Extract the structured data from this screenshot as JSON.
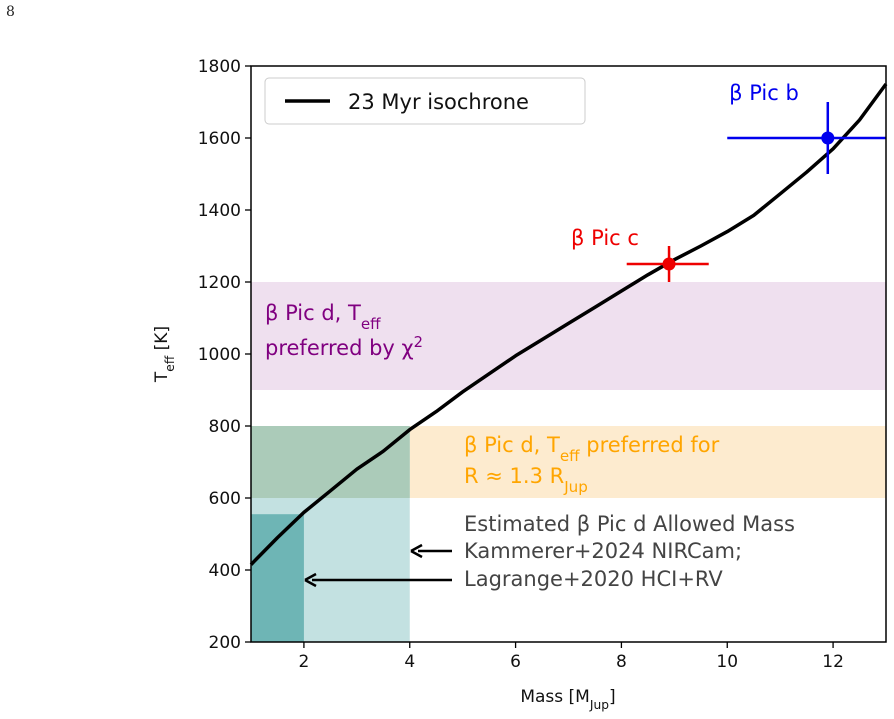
{
  "page_number": "8",
  "chart_data": {
    "type": "line",
    "xlabel": "Mass [M_Jup]",
    "ylabel": "T_eff [K]",
    "xlim": [
      1,
      13
    ],
    "ylim": [
      200,
      1800
    ],
    "xticks": [
      2,
      4,
      6,
      8,
      10,
      12
    ],
    "yticks": [
      200,
      400,
      600,
      800,
      1000,
      1200,
      1400,
      1600,
      1800
    ],
    "grid": false,
    "legend": {
      "position": "top-left",
      "entries": [
        "23 Myr isochrone"
      ]
    },
    "series": [
      {
        "name": "23 Myr isochrone",
        "color": "#000000",
        "x": [
          1.0,
          1.5,
          2.0,
          2.5,
          3.0,
          3.5,
          4.0,
          4.5,
          5.0,
          5.5,
          6.0,
          6.5,
          7.0,
          7.5,
          8.0,
          8.5,
          9.0,
          9.5,
          10.0,
          10.5,
          11.0,
          11.5,
          12.0,
          12.5,
          13.0
        ],
        "y": [
          415,
          490,
          560,
          620,
          680,
          730,
          790,
          840,
          895,
          945,
          995,
          1040,
          1085,
          1130,
          1175,
          1220,
          1262,
          1300,
          1340,
          1385,
          1445,
          1505,
          1570,
          1650,
          1750
        ]
      }
    ],
    "points": [
      {
        "label": "β Pic b",
        "color": "#0000ee",
        "x": 11.9,
        "y": 1600,
        "xerr": [
          1.9,
          1.1
        ],
        "yerr": [
          100,
          100
        ]
      },
      {
        "label": "β Pic c",
        "color": "#ee0000",
        "x": 8.9,
        "y": 1250,
        "xerr": [
          0.8,
          0.75
        ],
        "yerr": [
          50,
          50
        ]
      }
    ],
    "bands": [
      {
        "label_line1": "β Pic d, T_eff",
        "label_line2": "preferred by χ²",
        "color": "#800080",
        "fill": "#efe0ef",
        "y": [
          900,
          1200
        ]
      },
      {
        "label_line1": "β Pic d, T_eff preferred for",
        "label_line2": "R ≈ 1.3 R_Jup",
        "color": "#ffa500",
        "fill": "#fdebcf",
        "y": [
          600,
          800
        ]
      }
    ],
    "mass_regions": [
      {
        "name": "Kammerer+2024 NIRCam",
        "x": [
          1,
          4
        ],
        "y": [
          200,
          800
        ],
        "fill": "#b8dcdc"
      },
      {
        "name": "Lagrange+2020 HCI+RV",
        "x": [
          1,
          2
        ],
        "y": [
          200,
          555
        ],
        "fill": "#69b2b2"
      }
    ],
    "mass_annotation": {
      "line1": "Estimated β Pic d Allowed Mass",
      "line2": "Kammerer+2024 NIRCam;",
      "line3": "Lagrange+2020 HCI+RV",
      "color": "#444444"
    }
  }
}
